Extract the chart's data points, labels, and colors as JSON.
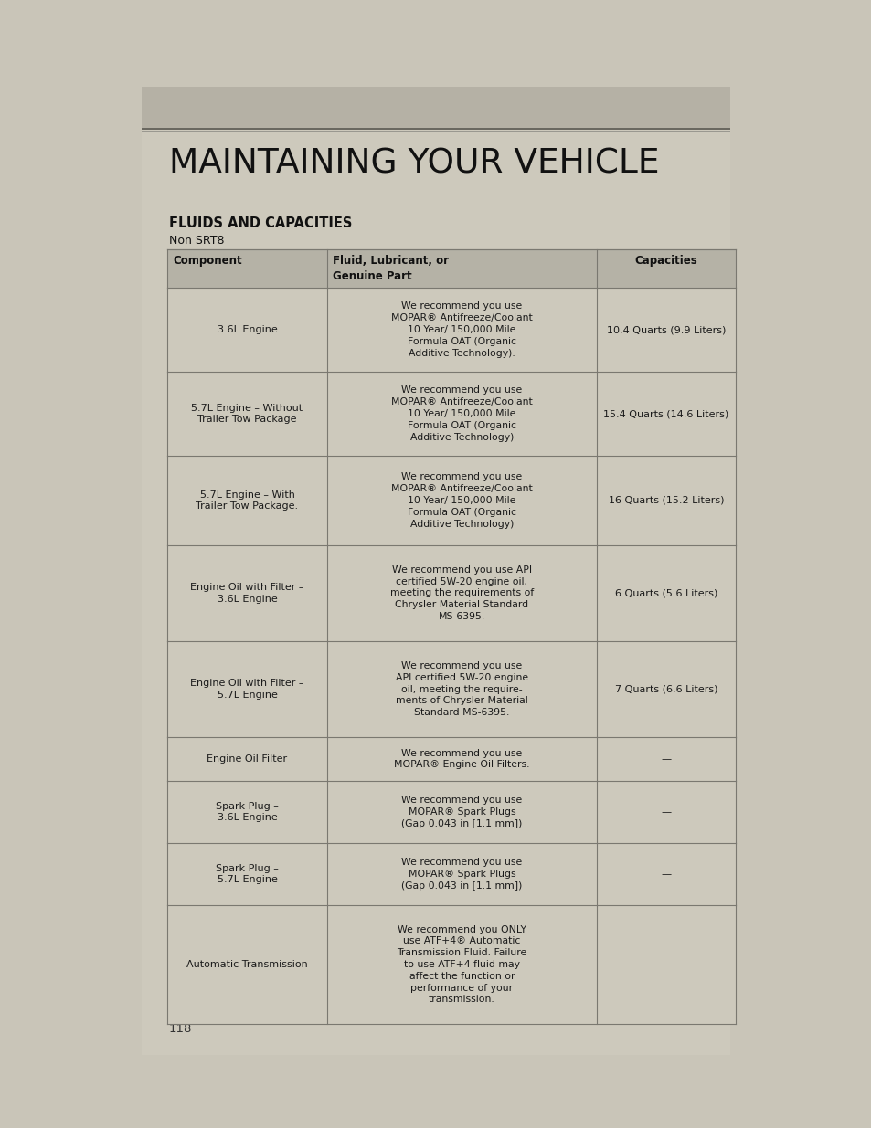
{
  "page_bg": "#c9c5b8",
  "content_bg": "#cdc9bc",
  "top_band_bg": "#b5b1a5",
  "title": "MAINTAINING YOUR VEHICLE",
  "section_title": "FLUIDS AND CAPACITIES",
  "subtitle": "Non SRT8",
  "page_number": "118",
  "col_headers": [
    "Component",
    "Fluid, Lubricant, or\nGenuine Part",
    "Capacities"
  ],
  "col_header_bg": "#b5b2a6",
  "row_bg": "#cdc9bc",
  "border_color": "#7a7870",
  "text_color": "#1a1a1a",
  "rows": [
    {
      "component": "3.6L Engine",
      "fluid": "We recommend you use\nMOPAR® Antifreeze/Coolant\n10 Year/ 150,000 Mile\nFormula OAT (Organic\nAdditive Technology).",
      "capacity": "10.4 Quarts (9.9 Liters)",
      "fluid_bold": ""
    },
    {
      "component": "5.7L Engine – Without\nTrailer Tow Package",
      "fluid": "We recommend you use\nMOPAR® Antifreeze/Coolant\n10 Year/ 150,000 Mile\nFormula OAT (Organic\nAdditive Technology)",
      "capacity": "15.4 Quarts (14.6 Liters)",
      "fluid_bold": ""
    },
    {
      "component": "5.7L Engine – With\nTrailer Tow Package.",
      "fluid": "We recommend you use\nMOPAR® Antifreeze/Coolant\n10 Year/ 150,000 Mile\nFormula OAT (Organic\nAdditive Technology)",
      "capacity": "16 Quarts (15.2 Liters)",
      "fluid_bold": ""
    },
    {
      "component": "Engine Oil with Filter –\n3.6L Engine",
      "fluid": "We recommend you use API\ncertified 5W-20 engine oil,\nmeeting the requirements of\nChrysler Material Standard\nMS-6395.",
      "capacity": "6 Quarts (5.6 Liters)",
      "fluid_bold": ""
    },
    {
      "component": "Engine Oil with Filter –\n5.7L Engine",
      "fluid": "We recommend you use\nAPI certified 5W-20 engine\noil, meeting the require-\nments of Chrysler Material\nStandard MS-6395.",
      "capacity": "7 Quarts (6.6 Liters)",
      "fluid_bold": ""
    },
    {
      "component": "Engine Oil Filter",
      "fluid": "We recommend you use\nMOPAR® Engine Oil Filters.",
      "capacity": "—",
      "fluid_bold": ""
    },
    {
      "component": "Spark Plug –\n3.6L Engine",
      "fluid": "We recommend you use\nMOPAR® Spark Plugs\n(Gap 0.043 in [1.1 mm])",
      "capacity": "—",
      "fluid_bold": ""
    },
    {
      "component": "Spark Plug –\n5.7L Engine",
      "fluid": "We recommend you use\nMOPAR® Spark Plugs\n(Gap 0.043 in [1.1 mm])",
      "capacity": "—",
      "fluid_bold": ""
    },
    {
      "component": "Automatic Transmission",
      "fluid": "We recommend you ONLY\nuse ATF+4® Automatic\nTransmission Fluid. Failure\nto use ATF+4 fluid may\naffect the function or\nperformance of your\ntransmission.",
      "capacity": "—",
      "fluid_bold": "ONLY"
    }
  ]
}
